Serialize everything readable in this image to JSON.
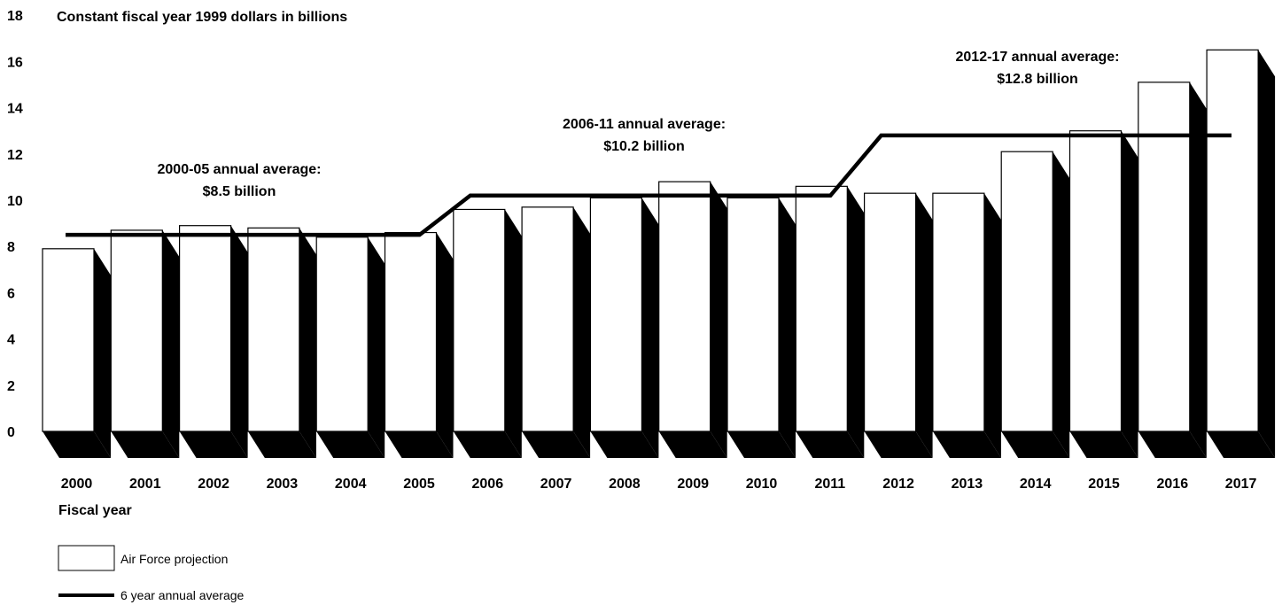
{
  "chart_data": {
    "type": "bar",
    "title": "Constant fiscal year 1999 dollars in billions",
    "xlabel": "Fiscal year",
    "ylabel": "",
    "ylim": [
      0,
      18
    ],
    "yticks": [
      "0",
      "2",
      "4",
      "6",
      "8",
      "10",
      "12",
      "14",
      "16",
      "18"
    ],
    "categories": [
      "2000",
      "2001",
      "2002",
      "2003",
      "2004",
      "2005",
      "2006",
      "2007",
      "2008",
      "2009",
      "2010",
      "2011",
      "2012",
      "2013",
      "2014",
      "2015",
      "2016",
      "2017"
    ],
    "series": [
      {
        "name": "Air Force projection",
        "type": "bar",
        "values": [
          7.9,
          8.7,
          8.9,
          8.8,
          8.4,
          8.6,
          9.6,
          9.7,
          10.1,
          10.8,
          10.1,
          10.6,
          10.3,
          10.3,
          12.1,
          13.0,
          15.1,
          16.5
        ]
      },
      {
        "name": "6 year annual average",
        "type": "line",
        "values": [
          8.5,
          8.5,
          8.5,
          8.5,
          8.5,
          8.5,
          10.2,
          10.2,
          10.2,
          10.2,
          10.2,
          10.2,
          12.8,
          12.8,
          12.8,
          12.8,
          12.8,
          12.8
        ]
      }
    ],
    "annotations": [
      {
        "line1": "2000-05  annual average:",
        "line2": "$8.5 billion"
      },
      {
        "line1": "2006-11 annual average:",
        "line2": "$10.2 billion"
      },
      {
        "line1": "2012-17 annual average:",
        "line2": "$12.8 billion"
      }
    ],
    "legend_position": "bottom-left",
    "grid": false,
    "three_d": true
  }
}
